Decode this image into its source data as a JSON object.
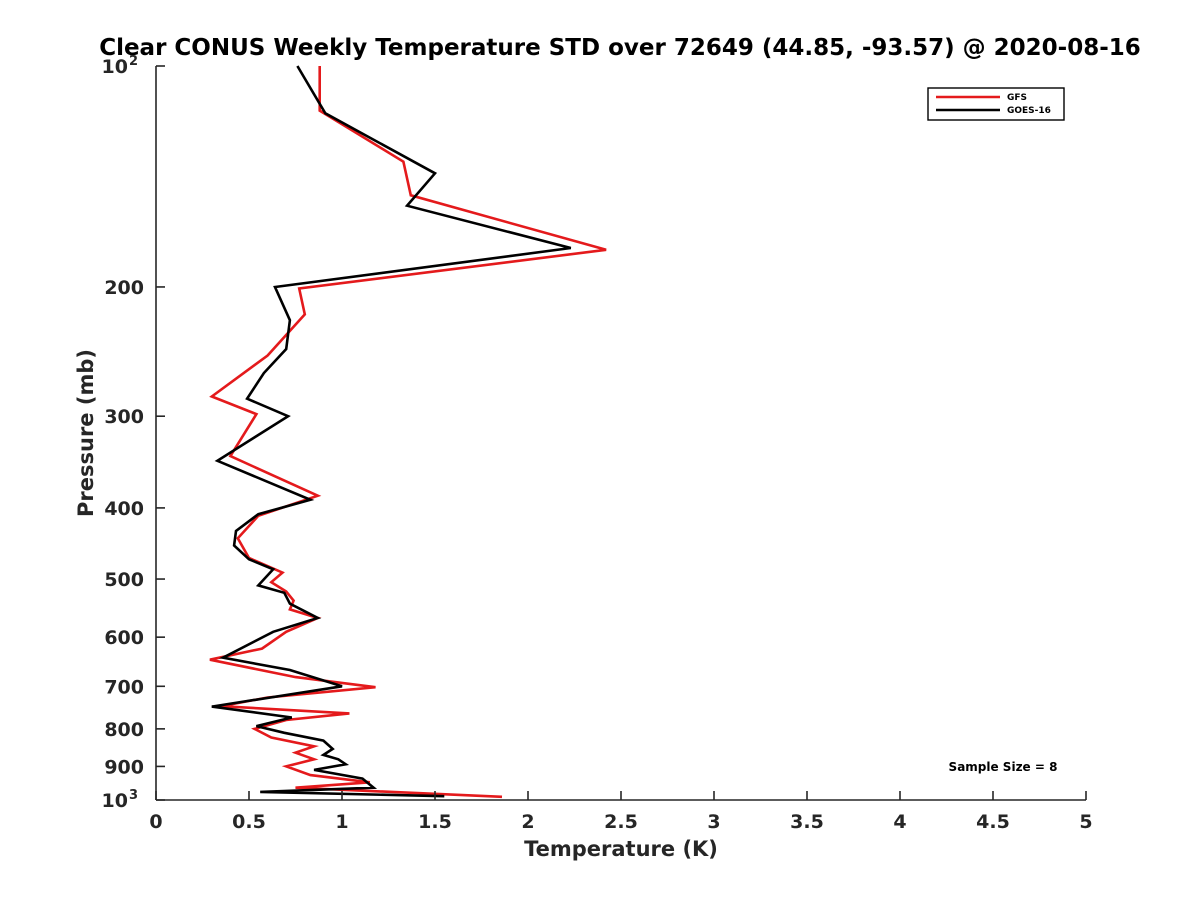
{
  "chart_data": {
    "type": "line",
    "title": "Clear CONUS Weekly Temperature STD over 72649 (44.85, -93.57) @ 2020-08-16",
    "xlabel": "Temperature (K)",
    "ylabel": "Pressure (mb)",
    "xlim": [
      0,
      5
    ],
    "ylim": [
      100,
      1000
    ],
    "y_scale": "log",
    "y_reversed": true,
    "x_ticks": [
      "0",
      "0.5",
      "1",
      "1.5",
      "2",
      "2.5",
      "3",
      "3.5",
      "4",
      "4.5",
      "5"
    ],
    "y_ticks": [
      {
        "value": 100,
        "base": "10",
        "exp": "2"
      },
      {
        "value": 200,
        "label": "200"
      },
      {
        "value": 300,
        "label": "300"
      },
      {
        "value": 400,
        "label": "400"
      },
      {
        "value": 500,
        "label": "500"
      },
      {
        "value": 600,
        "label": "600"
      },
      {
        "value": 700,
        "label": "700"
      },
      {
        "value": 800,
        "label": "800"
      },
      {
        "value": 900,
        "label": "900"
      },
      {
        "value": 1000,
        "base": "10",
        "exp": "3"
      }
    ],
    "grid": false,
    "legend_position": "top-right",
    "annotation": "Sample Size = 8",
    "series": [
      {
        "name": "GFS",
        "color": "#e41a1c",
        "points": [
          [
            0.88,
            100
          ],
          [
            0.88,
            115
          ],
          [
            1.33,
            135
          ],
          [
            1.37,
            150
          ],
          [
            2.42,
            178
          ],
          [
            0.77,
            201
          ],
          [
            0.8,
            218
          ],
          [
            0.6,
            248
          ],
          [
            0.3,
            282
          ],
          [
            0.54,
            298
          ],
          [
            0.4,
            340
          ],
          [
            0.87,
            385
          ],
          [
            0.55,
            410
          ],
          [
            0.44,
            440
          ],
          [
            0.5,
            468
          ],
          [
            0.68,
            490
          ],
          [
            0.62,
            505
          ],
          [
            0.7,
            520
          ],
          [
            0.74,
            535
          ],
          [
            0.72,
            550
          ],
          [
            0.87,
            565
          ],
          [
            0.7,
            590
          ],
          [
            0.57,
            622
          ],
          [
            0.29,
            644
          ],
          [
            0.75,
            680
          ],
          [
            1.18,
            702
          ],
          [
            0.6,
            725
          ],
          [
            0.35,
            745
          ],
          [
            1.04,
            762
          ],
          [
            0.7,
            778
          ],
          [
            0.53,
            800
          ],
          [
            0.62,
            822
          ],
          [
            0.85,
            845
          ],
          [
            0.75,
            862
          ],
          [
            0.85,
            880
          ],
          [
            0.7,
            900
          ],
          [
            0.83,
            925
          ],
          [
            1.15,
            946
          ],
          [
            0.75,
            962
          ],
          [
            1.86,
            990
          ]
        ]
      },
      {
        "name": "GOES-16",
        "color": "#000000",
        "points": [
          [
            0.76,
            100
          ],
          [
            0.91,
            116
          ],
          [
            1.5,
            140
          ],
          [
            1.35,
            155
          ],
          [
            2.23,
            177
          ],
          [
            0.64,
            200
          ],
          [
            0.72,
            222
          ],
          [
            0.7,
            243
          ],
          [
            0.58,
            262
          ],
          [
            0.49,
            284
          ],
          [
            0.71,
            300
          ],
          [
            0.33,
            345
          ],
          [
            0.83,
            390
          ],
          [
            0.55,
            408
          ],
          [
            0.43,
            430
          ],
          [
            0.42,
            450
          ],
          [
            0.5,
            470
          ],
          [
            0.63,
            485
          ],
          [
            0.55,
            510
          ],
          [
            0.69,
            522
          ],
          [
            0.72,
            540
          ],
          [
            0.87,
            565
          ],
          [
            0.63,
            590
          ],
          [
            0.36,
            640
          ],
          [
            0.72,
            665
          ],
          [
            1.0,
            700
          ],
          [
            0.3,
            746
          ],
          [
            0.73,
            772
          ],
          [
            0.54,
            793
          ],
          [
            0.69,
            810
          ],
          [
            0.9,
            830
          ],
          [
            0.95,
            852
          ],
          [
            0.9,
            868
          ],
          [
            0.98,
            880
          ],
          [
            1.02,
            894
          ],
          [
            0.85,
            910
          ],
          [
            1.11,
            935
          ],
          [
            1.17,
            962
          ],
          [
            0.56,
            975
          ],
          [
            1.55,
            988
          ]
        ]
      }
    ]
  }
}
